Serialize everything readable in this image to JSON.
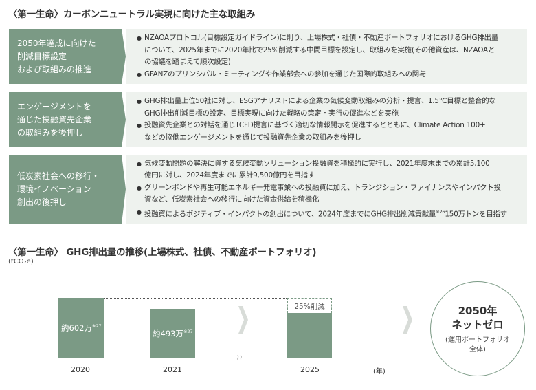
{
  "section1": {
    "title": "〈第一生命〉カーボンニュートラル実現に向けた主な取組み",
    "rows": [
      {
        "label_lines": [
          "2050年達成に向けた",
          "削減目標設定",
          "および取組みの推進"
        ],
        "bullets": [
          [
            "NZAOAプロトコル(目標設定ガイドライン)に則り、上場株式・社債・不動産ポートフォリオにおけるGHG排出量",
            "について、2025年までに2020年比で25%削減する中間目標を設定し、取組みを実施(その他資産は、NZAOAと",
            "の協議を踏まえて順次設定)"
          ],
          [
            "GFANZのプリンシパル・ミーティングや作業部会への参加を通じた国際的取組みへの関与"
          ]
        ]
      },
      {
        "label_lines": [
          "エンゲージメントを",
          "通じた投融資先企業",
          "の取組みを後押し"
        ],
        "bullets": [
          [
            "GHG排出量上位50社に対し、ESGアナリストによる企業の気候変動取組みの分析・提言、1.5℃目標と整合的な",
            "GHG排出削減目標の設定、目標実現に向けた戦略の策定・実行の促進などを実施"
          ],
          [
            "投融資先企業との対話を通じTCFD提言に基づく適切な情報開示を促進するとともに、Climate Action 100+",
            "などの協働エンゲージメントを通じて投融資先企業の取組みを後押し"
          ]
        ]
      },
      {
        "label_lines": [
          "低炭素社会への移行・",
          "環境イノベーション",
          "創出の後押し"
        ],
        "bullets": [
          [
            "気候変動問題の解決に資する気候変動ソリューション投融資を積極的に実行し、2021年度末までの累計5,100",
            "億円に対し、2024年度までに累計9,500億円を目指す"
          ],
          [
            "グリーンボンドや再生可能エネルギー発電事業への投融資に加え、トランジション・ファイナンスやインパクト投",
            "資など、低炭素社会への移行に向けた資金供給を積極化"
          ],
          [
            "投融資によるポジティブ・インパクトの創出について、2024年度までにGHG排出削減貢献量",
            "150万トンを目指す"
          ]
        ],
        "last_bullet_sup": "※26"
      }
    ]
  },
  "section2": {
    "title": "〈第一生命〉 GHG排出量の推移(上場株式、社債、不動産ポートフォリオ)",
    "unit": "(tCO₂e)",
    "reduction_label": "25%削減",
    "year_unit": "(年)",
    "goal": {
      "line1": "2050年",
      "line2": "ネットゼロ",
      "sub1": "(運用ポートフォリオ",
      "sub2": "全体)"
    },
    "colors": {
      "bar": "#7b9a85",
      "panel": "#eef2ee"
    }
  },
  "chart_data": {
    "type": "bar",
    "title": "〈第一生命〉 GHG排出量の推移(上場株式、社債、不動産ポートフォリオ)",
    "ylabel": "(tCO₂e)",
    "xlabel": "(年)",
    "categories": [
      "2020",
      "2021",
      "2025"
    ],
    "values": [
      6020000,
      4930000,
      4515000
    ],
    "value_labels": [
      "約602万",
      "約493万",
      ""
    ],
    "value_sups": [
      "※27",
      "※27",
      ""
    ],
    "annotation": "25%削減",
    "ylim": [
      0,
      6020000
    ],
    "grid": false
  }
}
